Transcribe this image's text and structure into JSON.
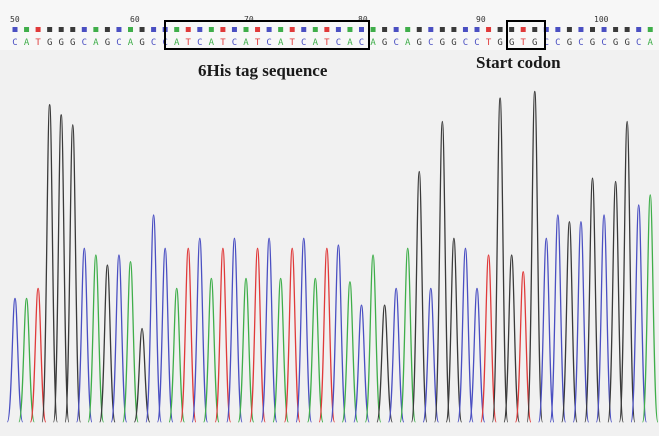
{
  "chromatogram": {
    "position_labels": [
      "50",
      "60",
      "70",
      "80",
      "90",
      "100"
    ],
    "sequence": "CATGGGCAGCAGCCATCATCATCATCATCACAGCAGCGGCCTGGTGCCGCGCGGCA",
    "peaks": [
      {
        "base": "C",
        "h": 0.37
      },
      {
        "base": "A",
        "h": 0.37
      },
      {
        "base": "T",
        "h": 0.4
      },
      {
        "base": "G",
        "h": 0.95
      },
      {
        "base": "G",
        "h": 0.92
      },
      {
        "base": "G",
        "h": 0.89
      },
      {
        "base": "C",
        "h": 0.52
      },
      {
        "base": "A",
        "h": 0.5
      },
      {
        "base": "G",
        "h": 0.47
      },
      {
        "base": "C",
        "h": 0.5
      },
      {
        "base": "A",
        "h": 0.48
      },
      {
        "base": "G",
        "h": 0.28
      },
      {
        "base": "C",
        "h": 0.62
      },
      {
        "base": "C",
        "h": 0.52
      },
      {
        "base": "A",
        "h": 0.4
      },
      {
        "base": "T",
        "h": 0.52
      },
      {
        "base": "C",
        "h": 0.55
      },
      {
        "base": "A",
        "h": 0.43
      },
      {
        "base": "T",
        "h": 0.52
      },
      {
        "base": "C",
        "h": 0.55
      },
      {
        "base": "A",
        "h": 0.43
      },
      {
        "base": "T",
        "h": 0.52
      },
      {
        "base": "C",
        "h": 0.55
      },
      {
        "base": "A",
        "h": 0.43
      },
      {
        "base": "T",
        "h": 0.52
      },
      {
        "base": "C",
        "h": 0.55
      },
      {
        "base": "A",
        "h": 0.43
      },
      {
        "base": "T",
        "h": 0.52
      },
      {
        "base": "C",
        "h": 0.53
      },
      {
        "base": "A",
        "h": 0.42
      },
      {
        "base": "C",
        "h": 0.35
      },
      {
        "base": "A",
        "h": 0.5
      },
      {
        "base": "G",
        "h": 0.35
      },
      {
        "base": "C",
        "h": 0.4
      },
      {
        "base": "A",
        "h": 0.52
      },
      {
        "base": "G",
        "h": 0.75
      },
      {
        "base": "C",
        "h": 0.4
      },
      {
        "base": "G",
        "h": 0.9
      },
      {
        "base": "G",
        "h": 0.55
      },
      {
        "base": "C",
        "h": 0.52
      },
      {
        "base": "C",
        "h": 0.4
      },
      {
        "base": "T",
        "h": 0.5
      },
      {
        "base": "G",
        "h": 0.97
      },
      {
        "base": "G",
        "h": 0.5
      },
      {
        "base": "T",
        "h": 0.45
      },
      {
        "base": "G",
        "h": 0.99
      },
      {
        "base": "C",
        "h": 0.55
      },
      {
        "base": "C",
        "h": 0.62
      },
      {
        "base": "G",
        "h": 0.6
      },
      {
        "base": "C",
        "h": 0.6
      },
      {
        "base": "G",
        "h": 0.73
      },
      {
        "base": "C",
        "h": 0.62
      },
      {
        "base": "G",
        "h": 0.72
      },
      {
        "base": "G",
        "h": 0.9
      },
      {
        "base": "C",
        "h": 0.65
      },
      {
        "base": "A",
        "h": 0.68
      }
    ],
    "colors": {
      "A": "#3fae4a",
      "C": "#4a4fc2",
      "G": "#3a3a3a",
      "T": "#e03a3a"
    }
  },
  "annotations": {
    "his_tag_label": "6His tag sequence",
    "start_codon_label": "Start codon"
  }
}
